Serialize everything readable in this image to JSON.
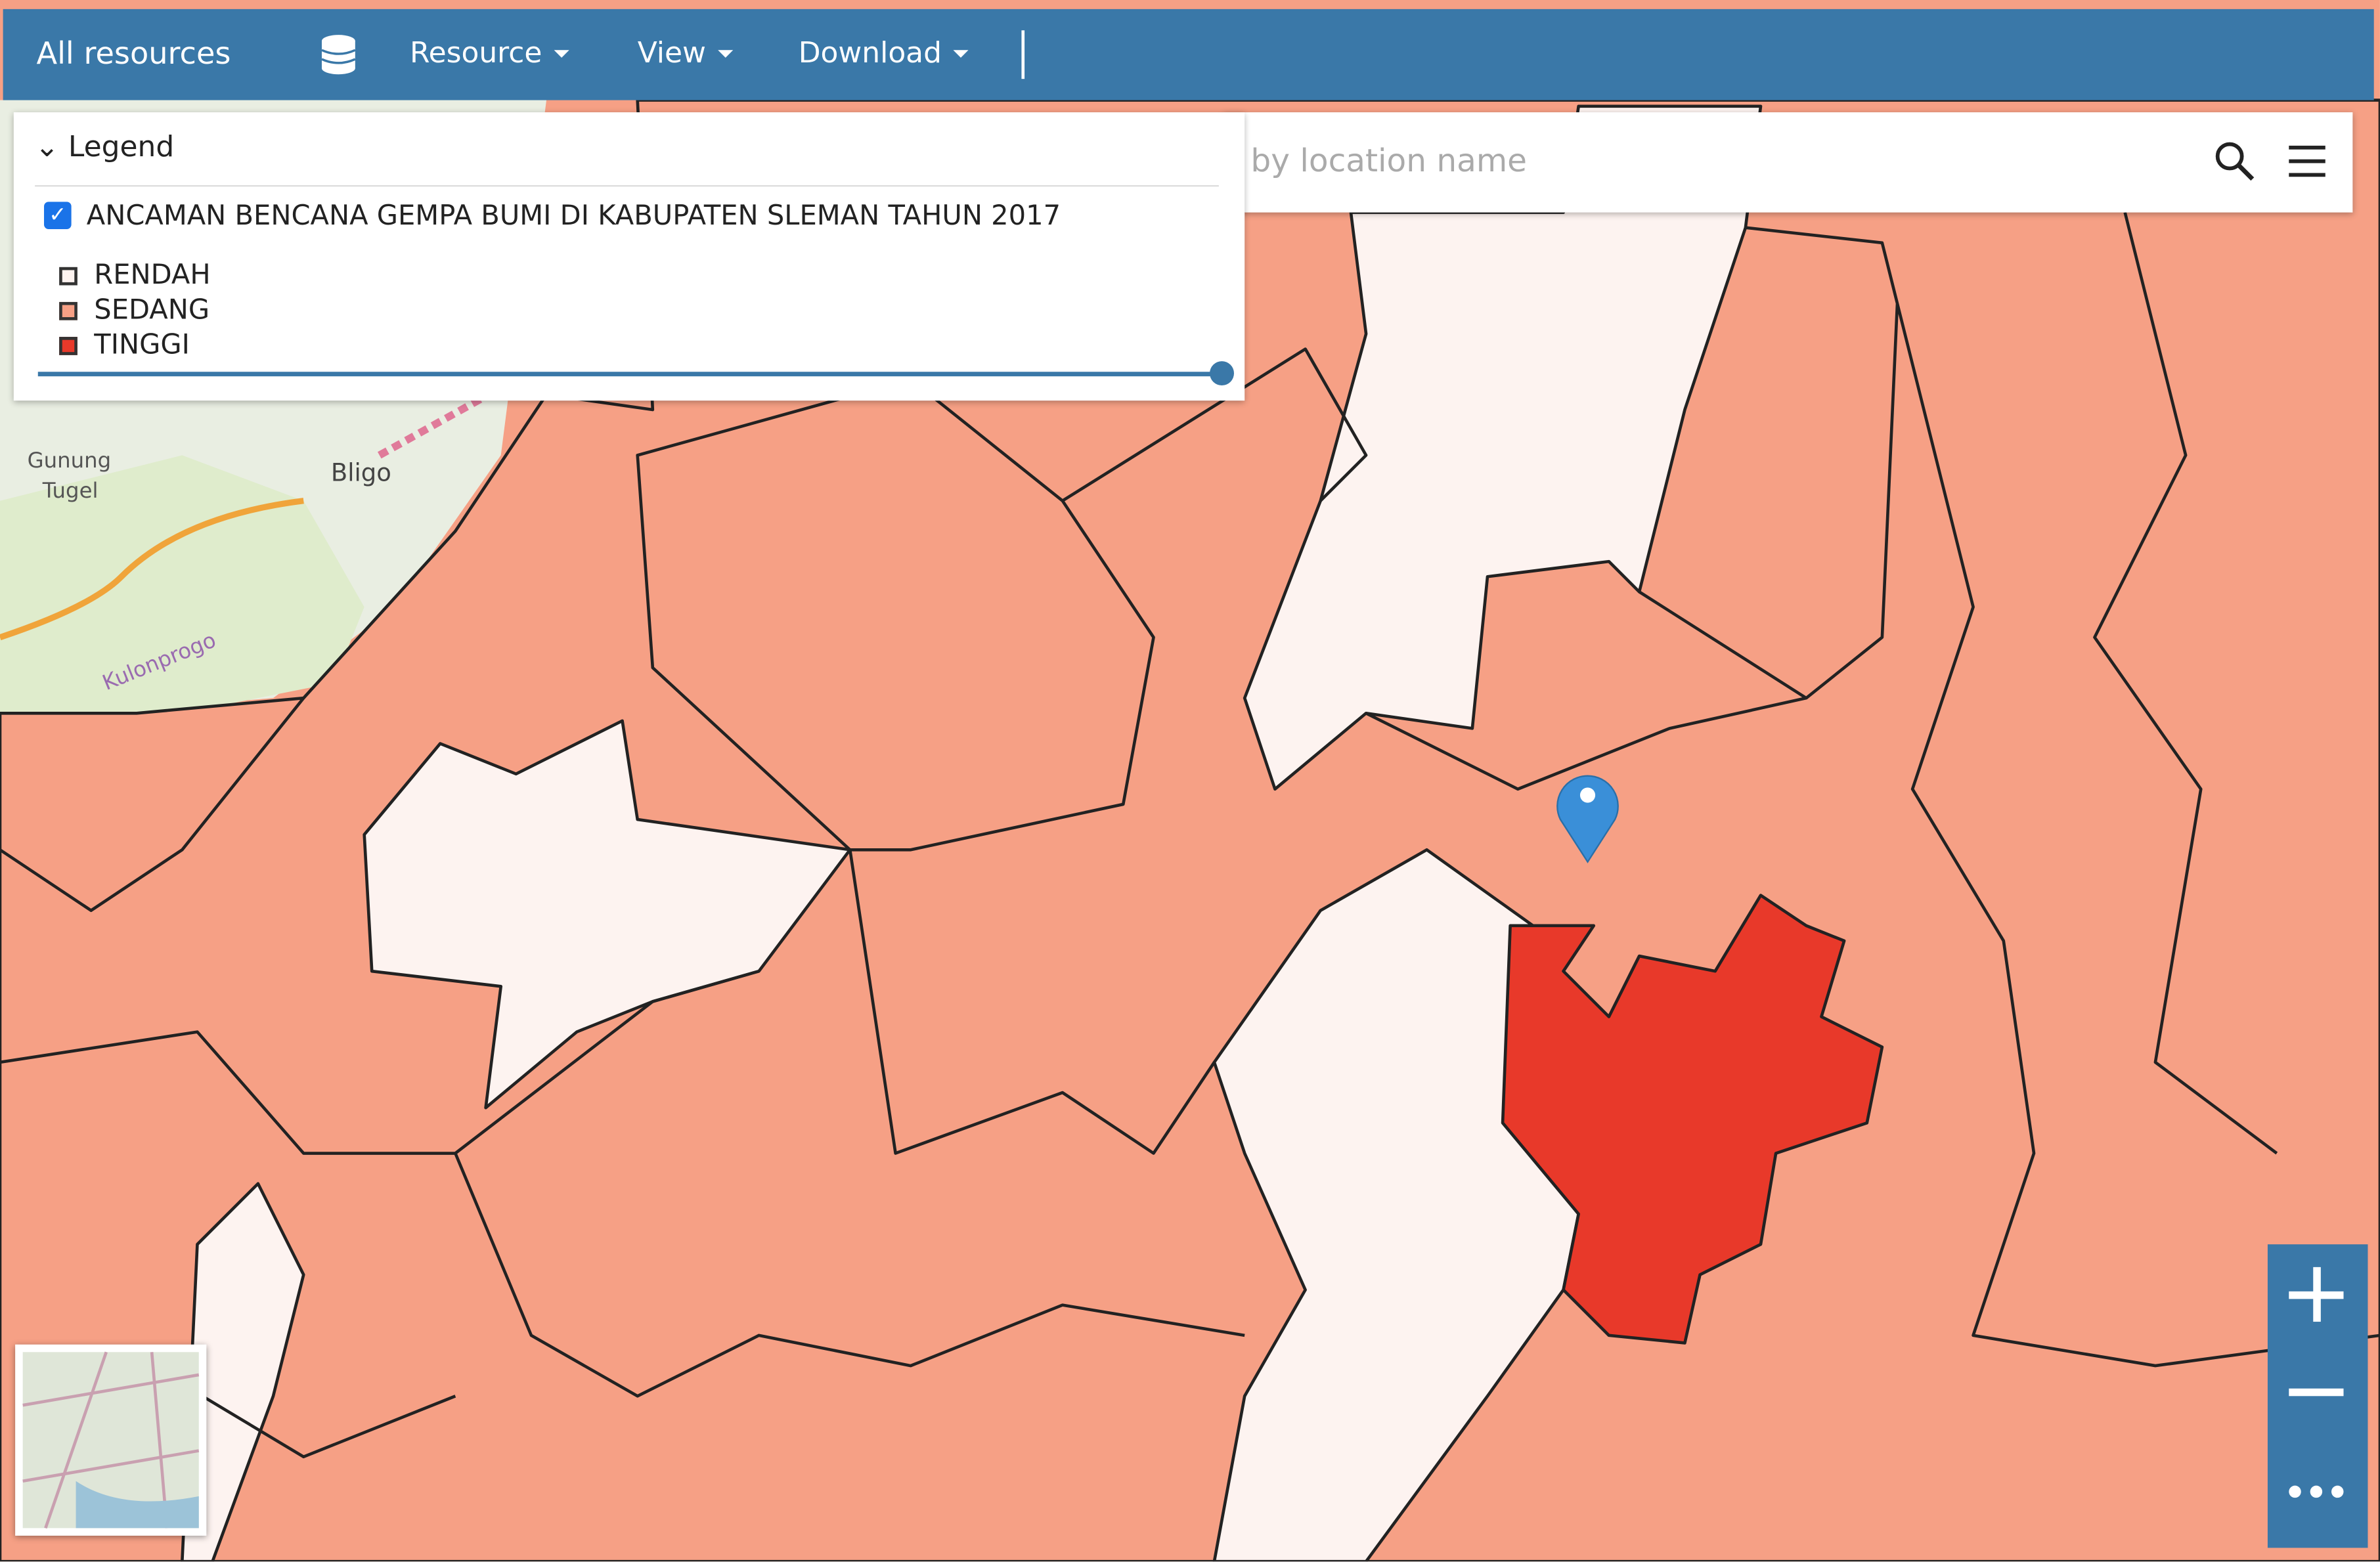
{
  "toolbar": {
    "title": "All resources",
    "menus": [
      "Resource",
      "View",
      "Download"
    ]
  },
  "legend": {
    "heading": "Legend",
    "layer": "ANCAMAN BENCANA GEMPA BUMI DI KABUPATEN SLEMAN TAHUN 2017",
    "items": [
      {
        "label": "RENDAH",
        "color": "#fdf3f0"
      },
      {
        "label": "SEDANG",
        "color": "#f6a085"
      },
      {
        "label": "TINGGI",
        "color": "#e8392a"
      }
    ]
  },
  "search": {
    "placeholder": "by location name"
  },
  "map_labels": {
    "place_1": [
      "Gunung",
      "Tugel"
    ],
    "place_2": "Bligo",
    "place_3": "Kulonprogo"
  }
}
